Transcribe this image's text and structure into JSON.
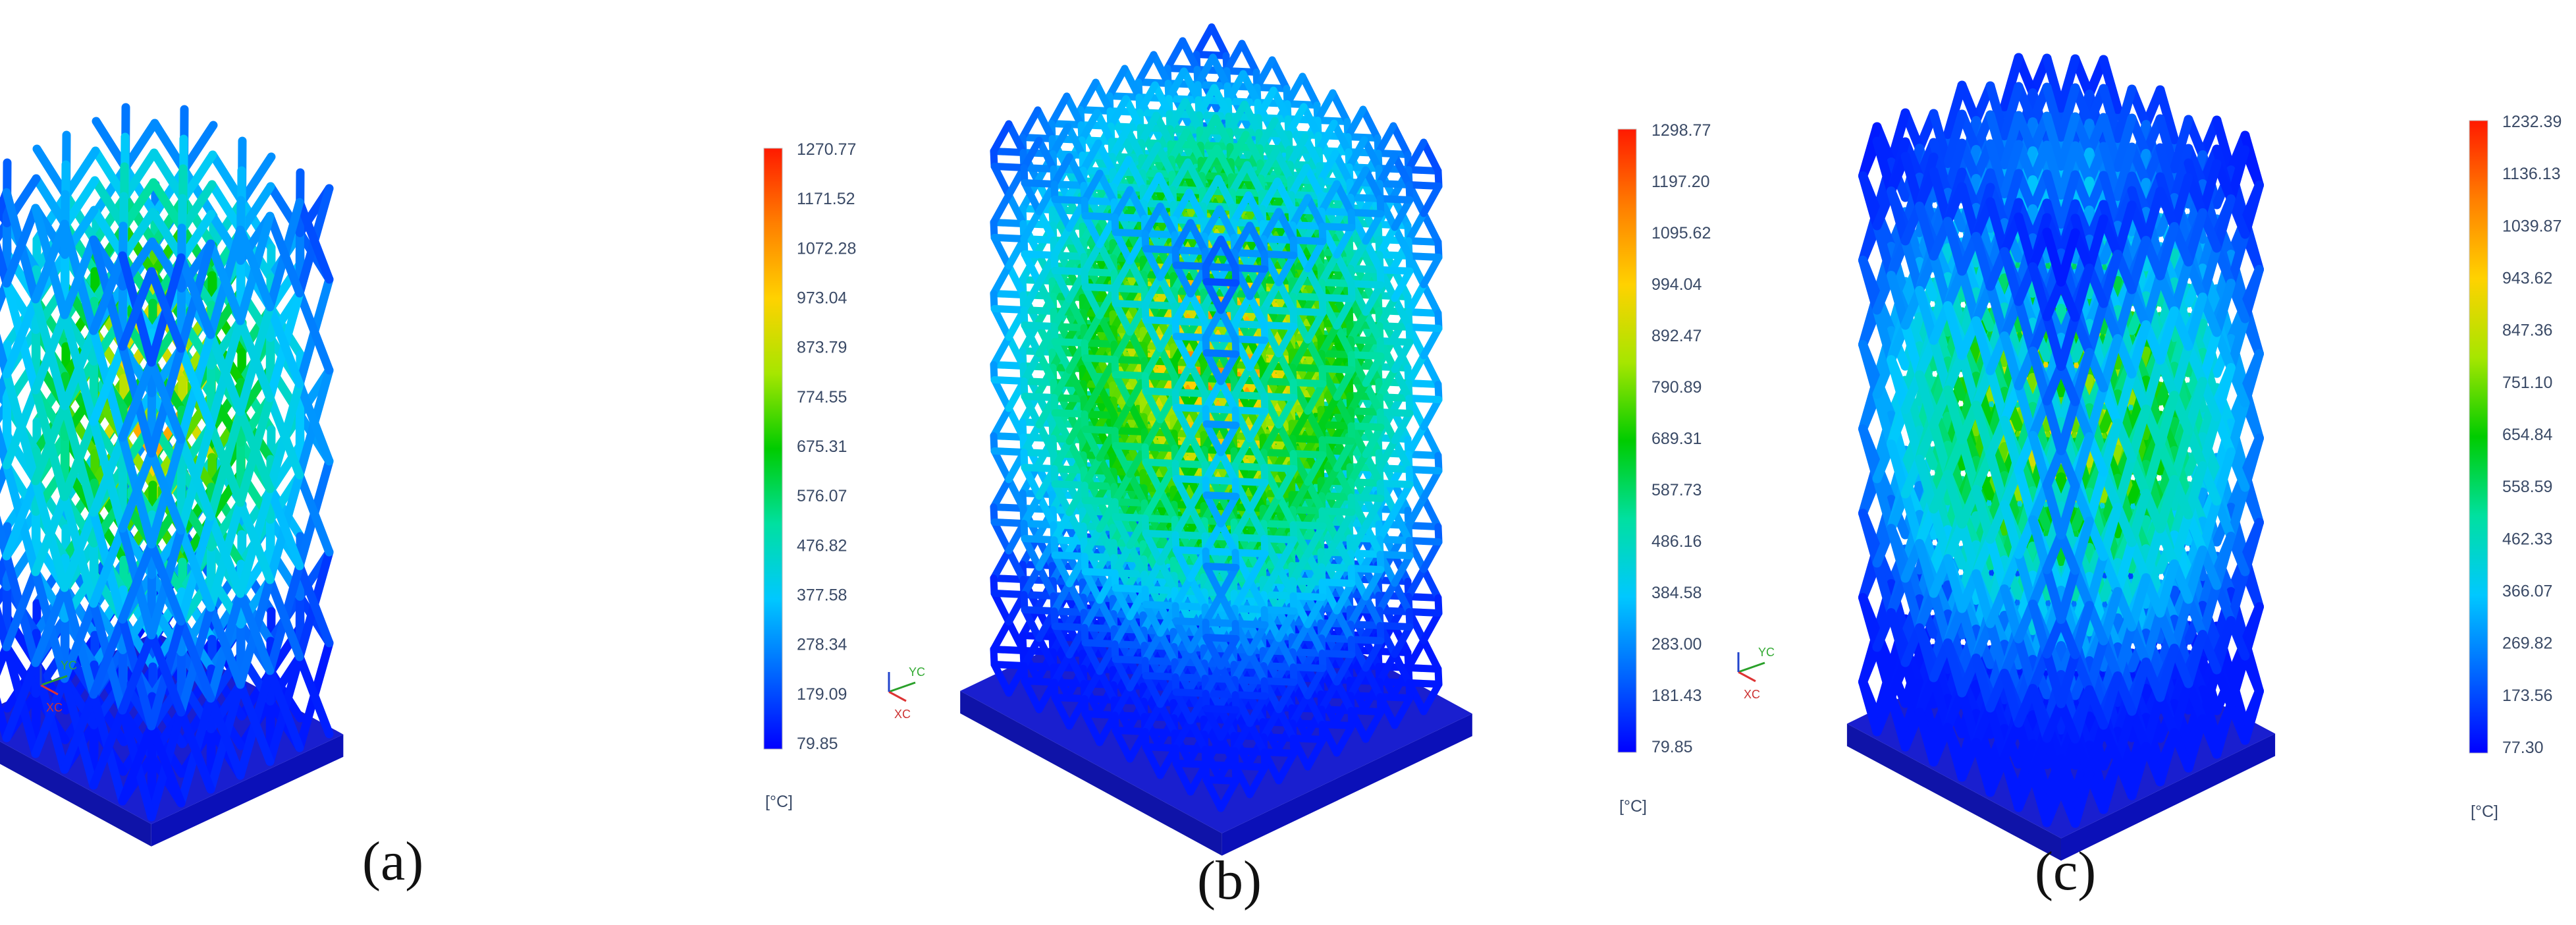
{
  "panels": [
    {
      "caption": "(a)",
      "lattice": "octet",
      "unit": "[°C]",
      "scale_labels": [
        "1270.77",
        "1171.52",
        "1072.28",
        "973.04",
        "873.79",
        "774.55",
        "675.31",
        "576.07",
        "476.82",
        "377.58",
        "278.34",
        "179.09",
        "79.85"
      ],
      "axis_labels": [
        "YC",
        "XC"
      ]
    },
    {
      "caption": "(b)",
      "lattice": "dense-cubic",
      "unit": "[°C]",
      "scale_labels": [
        "1298.77",
        "1197.20",
        "1095.62",
        "994.04",
        "892.47",
        "790.89",
        "689.31",
        "587.73",
        "486.16",
        "384.58",
        "283.00",
        "181.43",
        "79.85"
      ],
      "axis_labels": [
        "YC",
        "XC"
      ]
    },
    {
      "caption": "(c)",
      "lattice": "diamond",
      "unit": "[°C]",
      "scale_labels": [
        "1232.39",
        "1136.13",
        "1039.87",
        "943.62",
        "847.36",
        "751.10",
        "654.84",
        "558.59",
        "462.33",
        "366.07",
        "269.82",
        "173.56",
        "77.30"
      ],
      "axis_labels": [
        "YC",
        "XC"
      ]
    }
  ],
  "colors": {
    "base_plate": "#1a1fcf",
    "base_plate_edge": "#0f13a8",
    "colormap": [
      "#ff1a00",
      "#ff7f00",
      "#ffd200",
      "#a6e600",
      "#00cc00",
      "#00e0a0",
      "#00c8ff",
      "#0066ff",
      "#0000ff"
    ]
  }
}
